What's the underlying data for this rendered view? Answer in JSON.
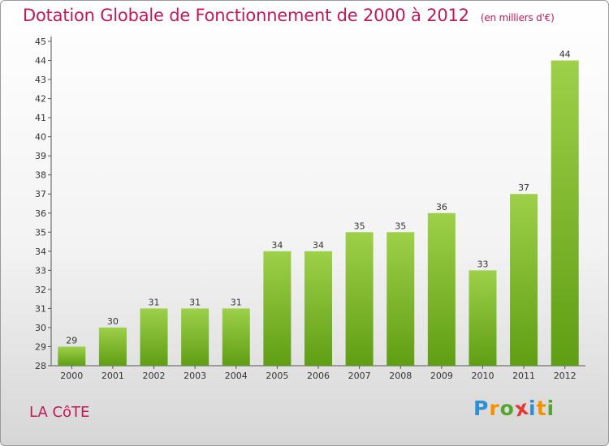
{
  "chart_data": {
    "type": "bar",
    "title": "Dotation Globale de Fonctionnement de 2000 à 2012",
    "subtitle": "(en milliers d'€)",
    "categories": [
      "2000",
      "2001",
      "2002",
      "2003",
      "2004",
      "2005",
      "2006",
      "2007",
      "2008",
      "2009",
      "2010",
      "2011",
      "2012"
    ],
    "values": [
      29,
      30,
      31,
      31,
      31,
      34,
      34,
      35,
      35,
      36,
      33,
      37,
      44
    ],
    "ylim": [
      28,
      45
    ],
    "yticks": [
      28,
      29,
      30,
      31,
      32,
      33,
      34,
      35,
      36,
      37,
      38,
      39,
      40,
      41,
      42,
      43,
      44,
      45
    ],
    "grid": false,
    "bar_color_top": "#9ed04a",
    "bar_color_bottom": "#5f9e14"
  },
  "footer": {
    "place": "LA CôTE",
    "logo_letters": [
      "P",
      "r",
      "o",
      "x",
      "i",
      "t",
      "i"
    ],
    "logo_colors": [
      "#2e8fd6",
      "#f39200",
      "#55a630",
      "#e53935",
      "#2e8fd6",
      "#f39200",
      "#55a630"
    ]
  }
}
